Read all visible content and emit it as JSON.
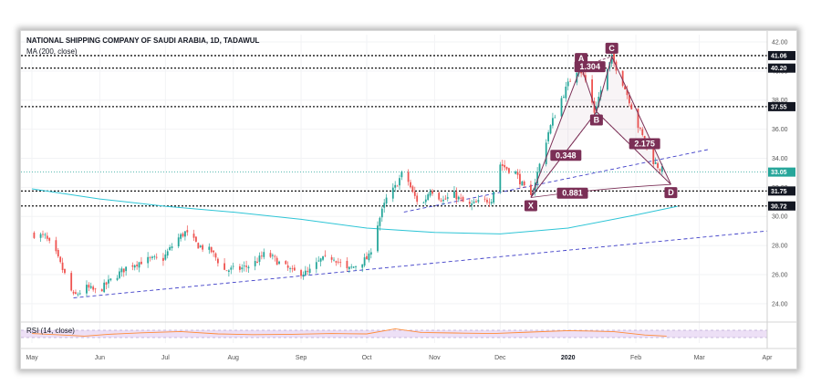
{
  "header": {
    "title": "NATIONAL SHIPPING COMPANY OF SAUDI ARABIA, 1D, TADAWUL",
    "indicator": "MA (200, close)"
  },
  "rsi": {
    "label": "RSI (14, close)"
  },
  "colors": {
    "up": "#26a69a",
    "down": "#ef5350",
    "ma": "#2ec5d6",
    "trend": "#3f3fc8",
    "pattern": "#7b2f56",
    "rsi_line": "#ff8c3a",
    "rsi_band": "#e9d8f4",
    "tag": "#131722",
    "last_price": "#26a69a"
  },
  "chart_data": {
    "type": "candlestick",
    "title": "NATIONAL SHIPPING COMPANY OF SAUDI ARABIA, 1D, TADAWUL",
    "ylim": [
      22.8,
      42.5
    ],
    "y_ticks": [
      24.0,
      26.0,
      28.0,
      30.0,
      32.0,
      34.0,
      36.0,
      38.0,
      40.0,
      42.0
    ],
    "y_tick_labels": [
      "24.00",
      "26.00",
      "28.00",
      "30.00",
      "32.00",
      "34.00",
      "36.00",
      "38.00",
      "40.00",
      "42.00"
    ],
    "x_range": [
      "2019-05-01",
      "2020-04-01"
    ],
    "x_ticks": [
      {
        "date": "2019-05-01",
        "label": "May",
        "bold": false
      },
      {
        "date": "2019-06-01",
        "label": "Jun",
        "bold": false
      },
      {
        "date": "2019-07-01",
        "label": "Jul",
        "bold": false
      },
      {
        "date": "2019-08-01",
        "label": "Aug",
        "bold": false
      },
      {
        "date": "2019-09-01",
        "label": "Sep",
        "bold": false
      },
      {
        "date": "2019-10-01",
        "label": "Oct",
        "bold": false
      },
      {
        "date": "2019-11-01",
        "label": "Nov",
        "bold": false
      },
      {
        "date": "2019-12-01",
        "label": "Dec",
        "bold": false
      },
      {
        "date": "2020-01-01",
        "label": "2020",
        "bold": true
      },
      {
        "date": "2020-02-01",
        "label": "Feb",
        "bold": false
      },
      {
        "date": "2020-03-01",
        "label": "Mar",
        "bold": false
      },
      {
        "date": "2020-04-01",
        "label": "Apr",
        "bold": false
      }
    ],
    "price_path": [
      [
        "2019-05-01",
        28.8
      ],
      [
        "2019-05-07",
        28.6
      ],
      [
        "2019-05-12",
        27.4
      ],
      [
        "2019-05-16",
        26.0
      ],
      [
        "2019-05-20",
        24.5
      ],
      [
        "2019-05-26",
        25.1
      ],
      [
        "2019-05-31",
        24.8
      ],
      [
        "2019-06-06",
        25.6
      ],
      [
        "2019-06-14",
        26.6
      ],
      [
        "2019-06-22",
        27.0
      ],
      [
        "2019-06-30",
        27.1
      ],
      [
        "2019-07-06",
        28.4
      ],
      [
        "2019-07-10",
        28.9
      ],
      [
        "2019-07-16",
        28.0
      ],
      [
        "2019-07-22",
        27.6
      ],
      [
        "2019-07-28",
        26.3
      ],
      [
        "2019-08-04",
        26.4
      ],
      [
        "2019-08-10",
        26.7
      ],
      [
        "2019-08-16",
        27.5
      ],
      [
        "2019-08-22",
        26.8
      ],
      [
        "2019-08-28",
        26.2
      ],
      [
        "2019-09-04",
        26.1
      ],
      [
        "2019-09-10",
        27.0
      ],
      [
        "2019-09-16",
        27.2
      ],
      [
        "2019-09-22",
        26.3
      ],
      [
        "2019-09-28",
        26.8
      ],
      [
        "2019-10-02",
        27.2
      ],
      [
        "2019-10-06",
        29.5
      ],
      [
        "2019-10-10",
        31.2
      ],
      [
        "2019-10-14",
        32.0
      ],
      [
        "2019-10-18",
        33.2
      ],
      [
        "2019-10-22",
        31.6
      ],
      [
        "2019-10-26",
        30.6
      ],
      [
        "2019-10-30",
        31.9
      ],
      [
        "2019-11-05",
        31.1
      ],
      [
        "2019-11-10",
        31.5
      ],
      [
        "2019-11-16",
        30.7
      ],
      [
        "2019-11-22",
        31.0
      ],
      [
        "2019-11-27",
        31.2
      ],
      [
        "2019-12-01",
        33.6
      ],
      [
        "2019-12-04",
        33.3
      ],
      [
        "2019-12-08",
        33.0
      ],
      [
        "2019-12-12",
        31.9
      ],
      [
        "2019-12-15",
        31.3
      ],
      [
        "2019-12-18",
        33.0
      ],
      [
        "2019-12-23",
        35.8
      ],
      [
        "2019-12-28",
        37.8
      ],
      [
        "2020-01-02",
        39.4
      ],
      [
        "2020-01-06",
        40.3
      ],
      [
        "2020-01-10",
        39.0
      ],
      [
        "2020-01-13",
        37.2
      ],
      [
        "2020-01-17",
        39.2
      ],
      [
        "2020-01-21",
        40.9
      ],
      [
        "2020-01-25",
        39.6
      ],
      [
        "2020-01-29",
        38.0
      ],
      [
        "2020-02-02",
        36.2
      ],
      [
        "2020-02-06",
        34.8
      ],
      [
        "2020-02-09",
        33.8
      ],
      [
        "2020-02-12",
        33.3
      ],
      [
        "2020-02-15",
        33.05
      ]
    ],
    "ma200": [
      [
        "2019-05-01",
        31.9
      ],
      [
        "2019-06-01",
        31.2
      ],
      [
        "2019-07-01",
        30.7
      ],
      [
        "2019-08-01",
        30.3
      ],
      [
        "2019-09-01",
        29.8
      ],
      [
        "2019-10-01",
        29.2
      ],
      [
        "2019-11-01",
        28.9
      ],
      [
        "2019-12-01",
        28.8
      ],
      [
        "2020-01-01",
        29.2
      ],
      [
        "2020-02-01",
        30.1
      ],
      [
        "2020-02-20",
        30.7
      ]
    ],
    "horizontal_levels": [
      {
        "value": 41.06,
        "label": "41.06"
      },
      {
        "value": 40.2,
        "label": "40.20"
      },
      {
        "value": 37.55,
        "label": "37.55"
      },
      {
        "value": 31.75,
        "label": "31.75"
      },
      {
        "value": 30.72,
        "label": "30.72"
      }
    ],
    "last_price": {
      "value": 33.05,
      "label": "33.05"
    },
    "trendlines": [
      {
        "from": [
          "2019-05-20",
          24.4
        ],
        "to": [
          "2020-04-01",
          29.0
        ]
      },
      {
        "from": [
          "2019-10-18",
          30.3
        ],
        "to": [
          "2020-03-05",
          34.6
        ]
      }
    ],
    "pattern_points": [
      {
        "label": "X",
        "date": "2019-12-15",
        "value": 31.3
      },
      {
        "label": "A",
        "date": "2020-01-07",
        "value": 40.3
      },
      {
        "label": "B",
        "date": "2020-01-14",
        "value": 37.2
      },
      {
        "label": "C",
        "date": "2020-01-21",
        "value": 41.0
      },
      {
        "label": "D",
        "date": "2020-02-17",
        "value": 32.2
      }
    ],
    "ratios": [
      {
        "label": "0.348",
        "date": "2019-12-31",
        "value": 34.2
      },
      {
        "label": "1.304",
        "date": "2020-01-11",
        "value": 40.3
      },
      {
        "label": "2.175",
        "date": "2020-02-05",
        "value": 35.0
      },
      {
        "label": "0.881",
        "date": "2020-01-03",
        "value": 31.6
      }
    ],
    "rsi14": [
      [
        "2019-05-01",
        52
      ],
      [
        "2019-05-15",
        44
      ],
      [
        "2019-05-25",
        38
      ],
      [
        "2019-06-05",
        48
      ],
      [
        "2019-06-20",
        56
      ],
      [
        "2019-07-08",
        63
      ],
      [
        "2019-07-25",
        50
      ],
      [
        "2019-08-10",
        46
      ],
      [
        "2019-08-28",
        48
      ],
      [
        "2019-09-15",
        52
      ],
      [
        "2019-10-01",
        50
      ],
      [
        "2019-10-14",
        78
      ],
      [
        "2019-10-26",
        58
      ],
      [
        "2019-11-10",
        55
      ],
      [
        "2019-11-28",
        52
      ],
      [
        "2019-12-15",
        60
      ],
      [
        "2020-01-01",
        68
      ],
      [
        "2020-01-10",
        66
      ],
      [
        "2020-01-22",
        62
      ],
      [
        "2020-02-05",
        44
      ],
      [
        "2020-02-15",
        38
      ]
    ]
  }
}
